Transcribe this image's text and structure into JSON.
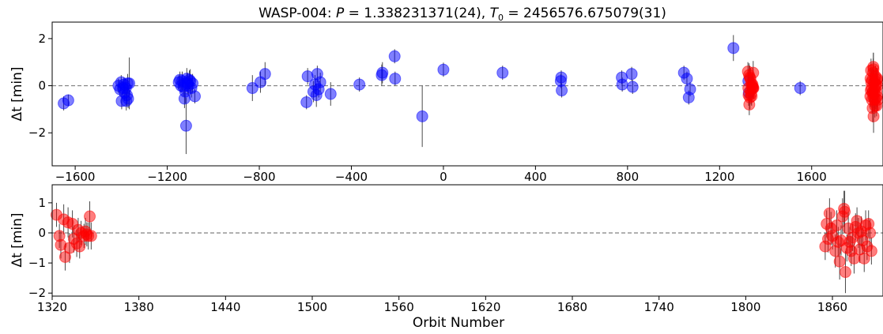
{
  "chart_data": [
    {
      "type": "scatter",
      "title": "WASP-004: P = 1.338231371(24), T0 = 2456576.675079(31)",
      "title_parts": [
        "WASP-004: ",
        "P",
        " = 1.338231371(24), ",
        "T",
        "0",
        " = 2456576.675079(31)"
      ],
      "xlabel": "",
      "ylabel": "Δt [min]",
      "xlim": [
        -1700,
        1910
      ],
      "ylim": [
        -3.4,
        2.7
      ],
      "xticks": [
        -1600,
        -1200,
        -800,
        -400,
        0,
        400,
        800,
        1200,
        1600
      ],
      "xtick_labels": [
        "−1600",
        "−1200",
        "−800",
        "−400",
        "0",
        "400",
        "800",
        "1200",
        "1600"
      ],
      "yticks": [
        -2,
        0,
        2
      ],
      "ytick_labels": [
        "−2",
        "0",
        "2"
      ],
      "zero_line": true,
      "series": [
        {
          "color": "#0000ff",
          "points": [
            [
              -1650,
              -0.75,
              0.3
            ],
            [
              -1630,
              -0.62,
              0.25
            ],
            [
              -1412,
              0.0,
              0.3
            ],
            [
              -1405,
              -0.15,
              0.3
            ],
            [
              -1400,
              0.15,
              0.3
            ],
            [
              -1398,
              -0.65,
              0.35
            ],
            [
              -1392,
              -0.1,
              0.3
            ],
            [
              -1388,
              0.05,
              0.3
            ],
            [
              -1385,
              -0.3,
              0.35
            ],
            [
              -1380,
              -0.1,
              0.3
            ],
            [
              -1378,
              -0.65,
              0.4
            ],
            [
              -1375,
              -0.4,
              0.45
            ],
            [
              -1372,
              0.1,
              0.4
            ],
            [
              -1370,
              -0.55,
              0.4
            ],
            [
              -1365,
              0.1,
              1.1
            ],
            [
              -1150,
              0.15,
              0.3
            ],
            [
              -1145,
              0.25,
              0.35
            ],
            [
              -1140,
              0.0,
              0.3
            ],
            [
              -1135,
              0.2,
              0.4
            ],
            [
              -1130,
              -0.05,
              0.4
            ],
            [
              -1125,
              -0.55,
              0.4
            ],
            [
              -1122,
              -0.25,
              0.5
            ],
            [
              -1118,
              -1.7,
              1.2
            ],
            [
              -1115,
              0.3,
              0.45
            ],
            [
              -1112,
              0.1,
              0.45
            ],
            [
              -1108,
              0.0,
              0.4
            ],
            [
              -1104,
              0.25,
              0.4
            ],
            [
              -1100,
              0.2,
              0.5
            ],
            [
              -1095,
              -0.1,
              0.4
            ],
            [
              -1090,
              0.1,
              0.4
            ],
            [
              -1080,
              -0.45,
              0.3
            ],
            [
              -830,
              -0.1,
              0.55
            ],
            [
              -795,
              0.15,
              0.45
            ],
            [
              -775,
              0.5,
              0.5
            ],
            [
              -595,
              -0.7,
              0.3
            ],
            [
              -590,
              0.4,
              0.35
            ],
            [
              -565,
              -0.25,
              0.45
            ],
            [
              -558,
              0.05,
              0.4
            ],
            [
              -552,
              -0.4,
              0.5
            ],
            [
              -548,
              0.5,
              0.35
            ],
            [
              -542,
              -0.15,
              0.35
            ],
            [
              -535,
              0.15,
              0.4
            ],
            [
              -490,
              -0.35,
              0.5
            ],
            [
              -365,
              0.05,
              0.3
            ],
            [
              -268,
              0.45,
              0.45
            ],
            [
              -265,
              0.55,
              0.45
            ],
            [
              -212,
              1.25,
              0.3
            ],
            [
              -210,
              0.3,
              0.3
            ],
            [
              -92,
              -1.3,
              1.3
            ],
            [
              0,
              0.68,
              0.3
            ],
            [
              257,
              0.55,
              0.3
            ],
            [
              510,
              0.2,
              0.3
            ],
            [
              512,
              0.35,
              0.3
            ],
            [
              514,
              -0.2,
              0.3
            ],
            [
              775,
              0.35,
              0.3
            ],
            [
              777,
              0.05,
              0.3
            ],
            [
              818,
              0.5,
              0.3
            ],
            [
              822,
              -0.05,
              0.3
            ],
            [
              1045,
              0.55,
              0.3
            ],
            [
              1058,
              0.3,
              0.3
            ],
            [
              1066,
              -0.5,
              0.3
            ],
            [
              1072,
              -0.15,
              0.3
            ],
            [
              1260,
              1.6,
              0.55
            ],
            [
              1325,
              0.2,
              0.35
            ],
            [
              1327,
              -0.3,
              0.35
            ],
            [
              1550,
              -0.1,
              0.3
            ]
          ]
        },
        {
          "color": "#ff0000",
          "points": [
            [
              1323,
              0.6,
              0.4
            ],
            [
              1325,
              -0.1,
              0.4
            ],
            [
              1326,
              -0.4,
              0.45
            ],
            [
              1328,
              0.45,
              0.5
            ],
            [
              1329,
              -0.8,
              0.45
            ],
            [
              1331,
              0.35,
              0.5
            ],
            [
              1332,
              -0.5,
              0.5
            ],
            [
              1334,
              0.3,
              0.45
            ],
            [
              1335,
              -0.2,
              0.45
            ],
            [
              1337,
              -0.35,
              0.45
            ],
            [
              1338,
              0.1,
              0.4
            ],
            [
              1339,
              -0.45,
              0.4
            ],
            [
              1340,
              0.0,
              0.4
            ],
            [
              1342,
              -0.1,
              0.4
            ],
            [
              1343,
              0.05,
              0.45
            ],
            [
              1344,
              -0.05,
              0.4
            ],
            [
              1345,
              -0.1,
              0.45
            ],
            [
              1346,
              0.55,
              0.5
            ],
            [
              1347,
              -0.1,
              0.45
            ],
            [
              1855,
              -0.45,
              0.45
            ],
            [
              1856,
              0.3,
              0.45
            ],
            [
              1857,
              -0.2,
              0.45
            ],
            [
              1858,
              0.65,
              0.5
            ],
            [
              1859,
              0.15,
              0.55
            ],
            [
              1860,
              -0.1,
              0.45
            ],
            [
              1862,
              -0.6,
              0.55
            ],
            [
              1863,
              0.25,
              0.5
            ],
            [
              1864,
              -0.3,
              0.5
            ],
            [
              1865,
              -0.95,
              0.6
            ],
            [
              1866,
              -0.25,
              0.5
            ],
            [
              1867,
              0.55,
              0.6
            ],
            [
              1868,
              0.8,
              0.6
            ],
            [
              1868.5,
              0.7,
              0.7
            ],
            [
              1869,
              -1.3,
              0.7
            ],
            [
              1870,
              -0.5,
              0.45
            ],
            [
              1871,
              0.15,
              0.55
            ],
            [
              1872,
              -0.3,
              0.5
            ],
            [
              1873,
              -0.6,
              0.5
            ],
            [
              1874,
              -0.15,
              0.45
            ],
            [
              1875,
              -0.85,
              0.5
            ],
            [
              1876,
              0.2,
              0.45
            ],
            [
              1877,
              0.4,
              0.45
            ],
            [
              1878,
              0.0,
              0.5
            ],
            [
              1879,
              -0.55,
              0.45
            ],
            [
              1880,
              0.05,
              0.5
            ],
            [
              1881,
              -0.25,
              0.45
            ],
            [
              1882,
              -0.85,
              0.45
            ],
            [
              1883,
              0.25,
              0.5
            ],
            [
              1884,
              -0.45,
              0.45
            ],
            [
              1885,
              0.3,
              0.45
            ],
            [
              1886,
              0.0,
              0.45
            ],
            [
              1887,
              -0.6,
              0.45
            ]
          ]
        }
      ]
    },
    {
      "type": "scatter",
      "xlabel": "Orbit Number",
      "ylabel": "Δt [min]",
      "xlim": [
        1320,
        1895
      ],
      "ylim": [
        -2.1,
        1.6
      ],
      "xticks": [
        1320,
        1380,
        1440,
        1500,
        1560,
        1620,
        1680,
        1740,
        1800,
        1860
      ],
      "xtick_labels": [
        "1320",
        "1380",
        "1440",
        "1500",
        "1560",
        "1620",
        "1680",
        "1740",
        "1800",
        "1860"
      ],
      "yticks": [
        -2,
        -1,
        0,
        1
      ],
      "ytick_labels": [
        "−2",
        "−1",
        "0",
        "1"
      ],
      "zero_line": true,
      "series": [
        {
          "color": "#ff0000",
          "points": [
            [
              1323,
              0.6,
              0.4
            ],
            [
              1325,
              -0.1,
              0.4
            ],
            [
              1326,
              -0.4,
              0.45
            ],
            [
              1328,
              0.45,
              0.5
            ],
            [
              1329,
              -0.8,
              0.45
            ],
            [
              1331,
              0.35,
              0.5
            ],
            [
              1332,
              -0.5,
              0.5
            ],
            [
              1334,
              0.3,
              0.45
            ],
            [
              1335,
              -0.2,
              0.45
            ],
            [
              1337,
              -0.35,
              0.45
            ],
            [
              1338,
              0.1,
              0.4
            ],
            [
              1339,
              -0.45,
              0.4
            ],
            [
              1340,
              0.0,
              0.4
            ],
            [
              1342,
              -0.1,
              0.4
            ],
            [
              1343,
              0.05,
              0.45
            ],
            [
              1344,
              -0.05,
              0.4
            ],
            [
              1345,
              -0.1,
              0.45
            ],
            [
              1346,
              0.55,
              0.5
            ],
            [
              1347,
              -0.1,
              0.45
            ],
            [
              1855,
              -0.45,
              0.45
            ],
            [
              1856,
              0.3,
              0.45
            ],
            [
              1857,
              -0.2,
              0.45
            ],
            [
              1858,
              0.65,
              0.5
            ],
            [
              1859,
              0.15,
              0.55
            ],
            [
              1860,
              -0.1,
              0.45
            ],
            [
              1862,
              -0.6,
              0.55
            ],
            [
              1863,
              0.25,
              0.5
            ],
            [
              1864,
              -0.3,
              0.5
            ],
            [
              1865,
              -0.95,
              0.6
            ],
            [
              1866,
              -0.25,
              0.5
            ],
            [
              1867,
              0.55,
              0.6
            ],
            [
              1868,
              0.8,
              0.6
            ],
            [
              1868.5,
              0.7,
              0.7
            ],
            [
              1869,
              -1.3,
              0.7
            ],
            [
              1870,
              -0.5,
              0.45
            ],
            [
              1871,
              0.15,
              0.55
            ],
            [
              1872,
              -0.3,
              0.5
            ],
            [
              1873,
              -0.6,
              0.5
            ],
            [
              1874,
              -0.15,
              0.45
            ],
            [
              1875,
              -0.85,
              0.5
            ],
            [
              1876,
              0.2,
              0.45
            ],
            [
              1877,
              0.4,
              0.45
            ],
            [
              1878,
              0.0,
              0.5
            ],
            [
              1879,
              -0.55,
              0.45
            ],
            [
              1880,
              0.05,
              0.5
            ],
            [
              1881,
              -0.25,
              0.45
            ],
            [
              1882,
              -0.85,
              0.45
            ],
            [
              1883,
              0.25,
              0.5
            ],
            [
              1884,
              -0.45,
              0.45
            ],
            [
              1885,
              0.3,
              0.45
            ],
            [
              1886,
              0.0,
              0.45
            ],
            [
              1887,
              -0.6,
              0.45
            ]
          ]
        }
      ]
    }
  ]
}
